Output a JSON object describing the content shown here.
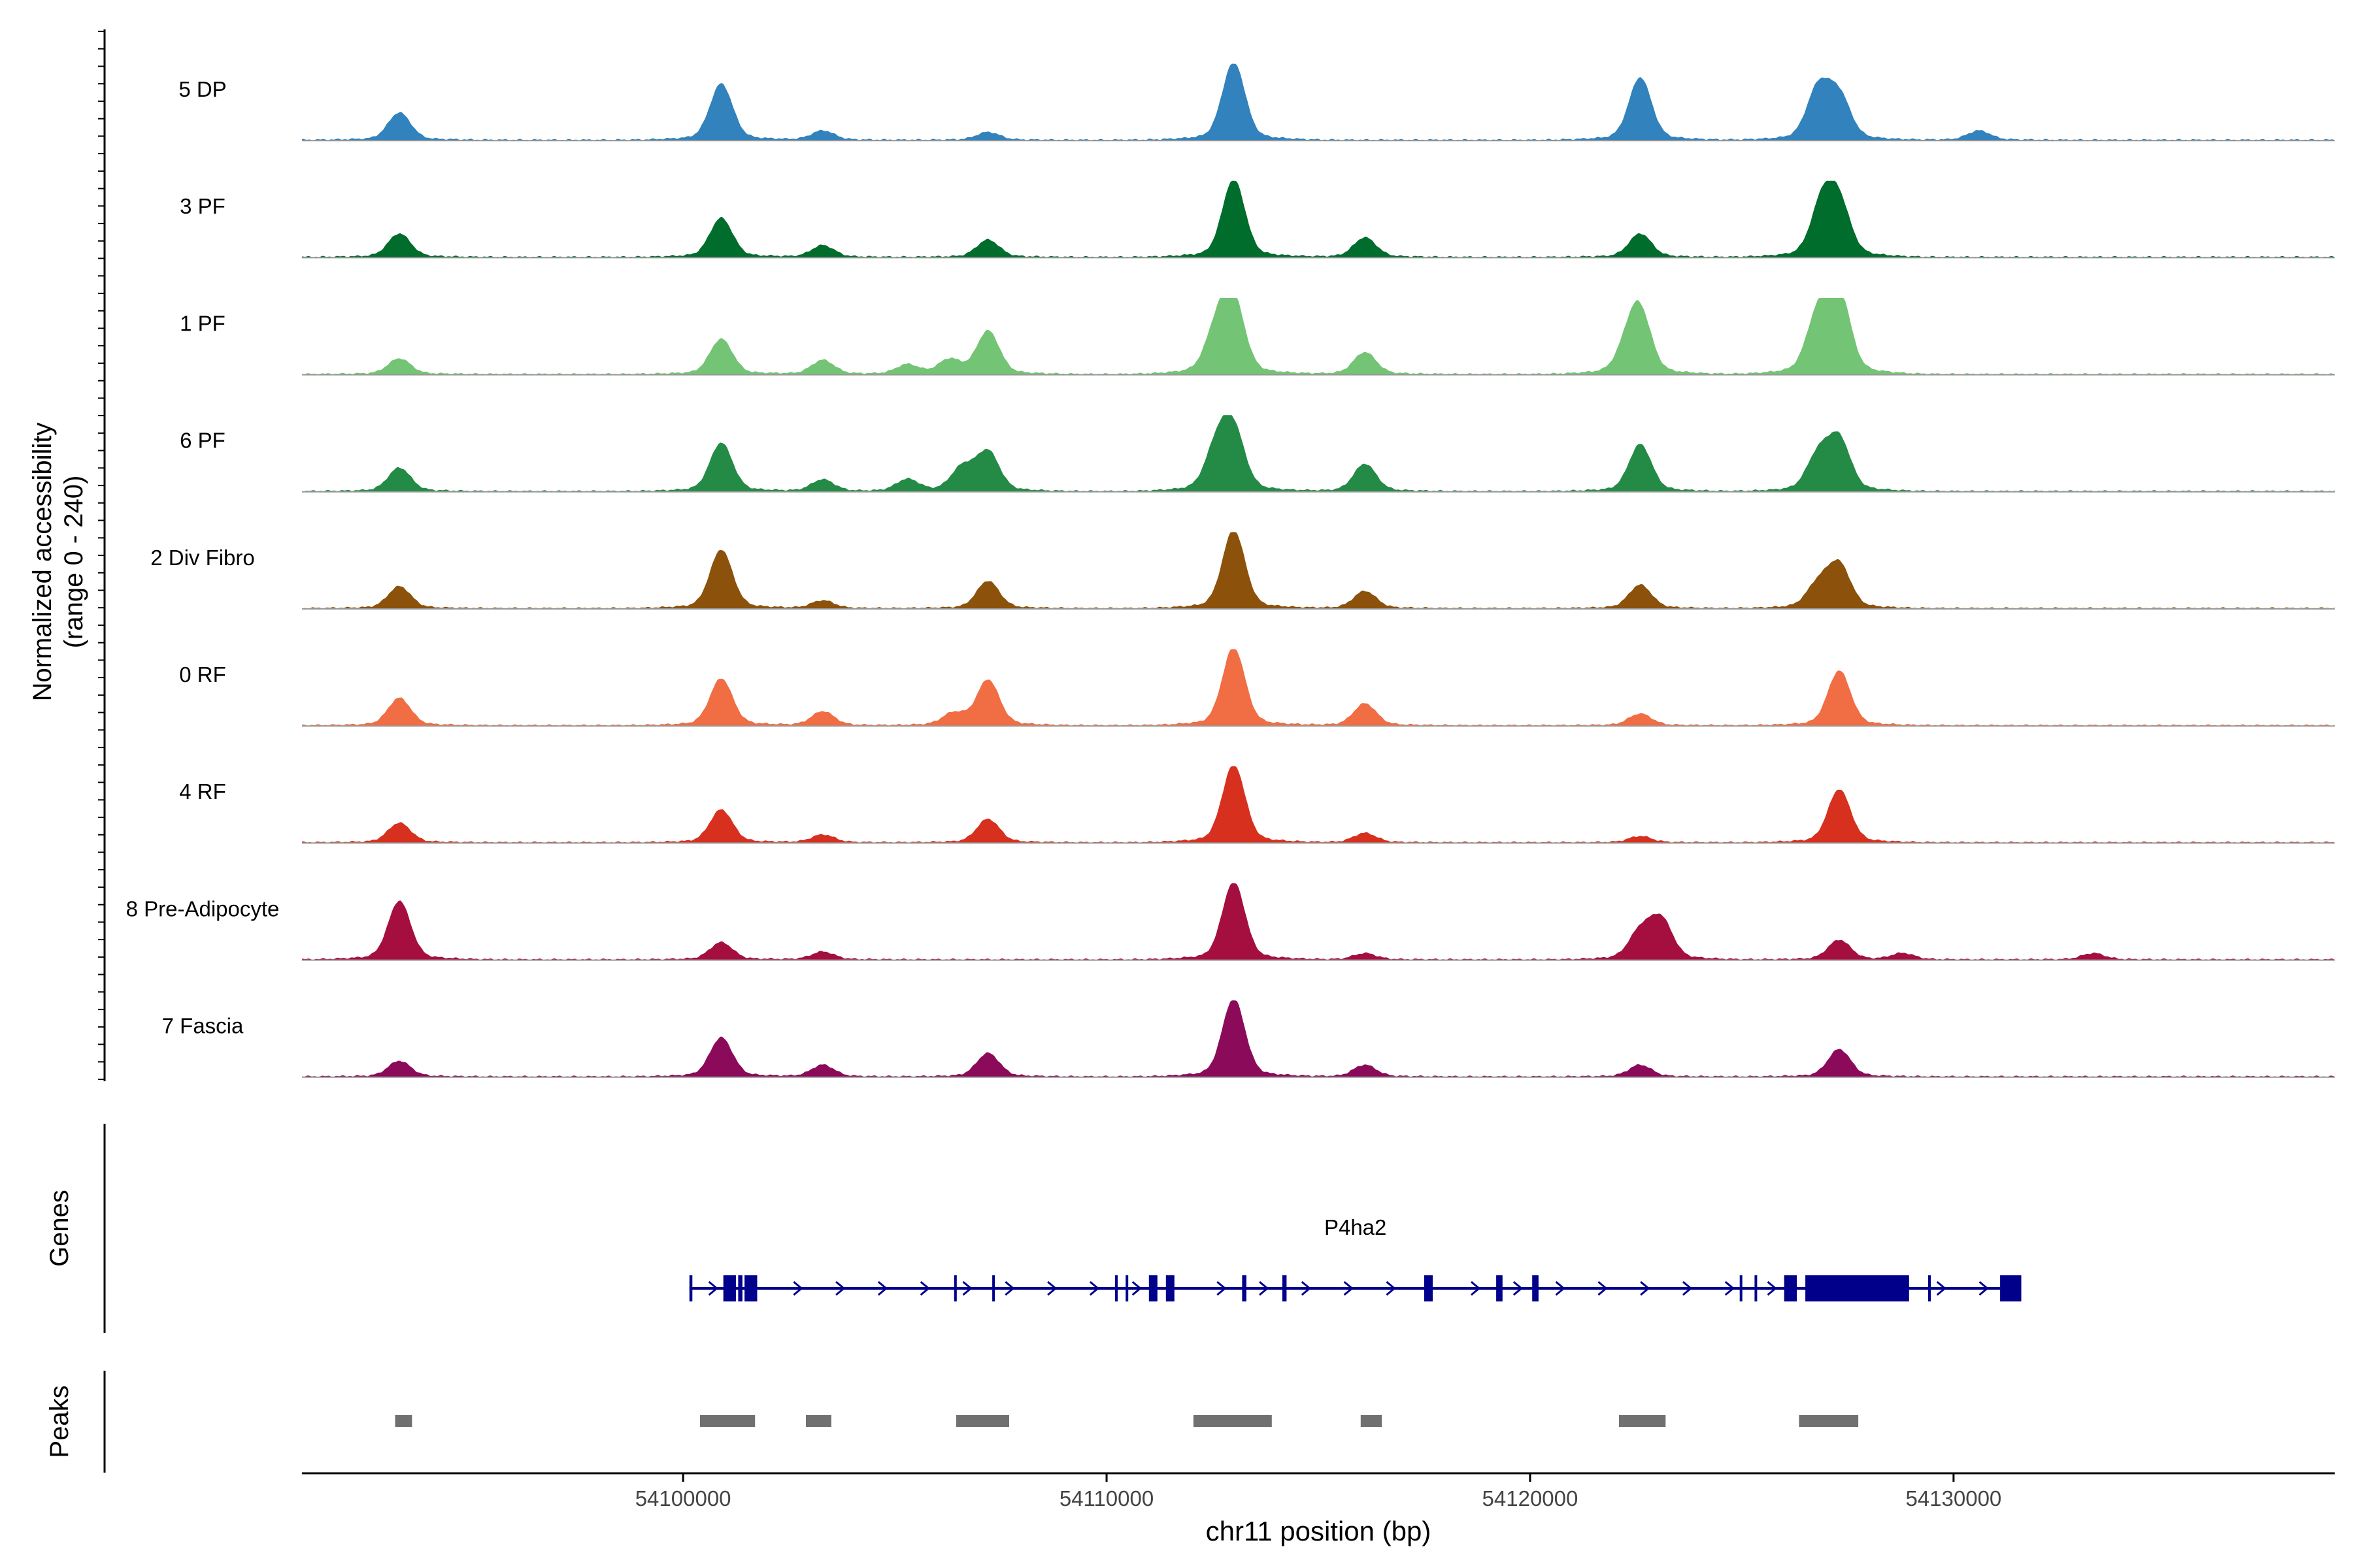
{
  "figure": {
    "y_axis_label_line1": "Normalized accessibility",
    "y_axis_label_line2": "(range 0 - 240)",
    "genes_label": "Genes",
    "peaks_label": "Peaks",
    "x_axis_label": "chr11 position (bp)"
  },
  "chart_data": {
    "type": "area",
    "title": "",
    "xlabel": "chr11 position (bp)",
    "ylabel": "Normalized accessibility (range 0 - 240)",
    "xlim": [
      54091000,
      54139000
    ],
    "ylim": [
      0,
      240
    ],
    "x_ticks": [
      54100000,
      54110000,
      54120000,
      54130000
    ],
    "x_tick_labels": [
      "54100000",
      "54110000",
      "54120000",
      "54130000"
    ],
    "tracks": [
      {
        "name": "5 DP",
        "color": "#3182BD",
        "peaks": [
          [
            54093300,
            0.35
          ],
          [
            54100900,
            0.72
          ],
          [
            54103300,
            0.12
          ],
          [
            54107200,
            0.1
          ],
          [
            54113000,
            1.0
          ],
          [
            54122600,
            0.8
          ],
          [
            54126800,
            0.65
          ],
          [
            54127300,
            0.55
          ],
          [
            54130600,
            0.12
          ]
        ]
      },
      {
        "name": "3 PF",
        "color": "#006D2C",
        "peaks": [
          [
            54093300,
            0.3
          ],
          [
            54100900,
            0.5
          ],
          [
            54103300,
            0.15
          ],
          [
            54107200,
            0.22
          ],
          [
            54113000,
            1.0
          ],
          [
            54116100,
            0.25
          ],
          [
            54122600,
            0.3
          ],
          [
            54126900,
            0.68
          ],
          [
            54127300,
            0.65
          ]
        ]
      },
      {
        "name": "1 PF",
        "color": "#74C476",
        "peaks": [
          [
            54093300,
            0.2
          ],
          [
            54100900,
            0.45
          ],
          [
            54103300,
            0.18
          ],
          [
            54105300,
            0.12
          ],
          [
            54106300,
            0.18
          ],
          [
            54107200,
            0.55
          ],
          [
            54112600,
            0.55
          ],
          [
            54113000,
            0.9
          ],
          [
            54116100,
            0.28
          ],
          [
            54122300,
            0.3
          ],
          [
            54122600,
            0.75
          ],
          [
            54126800,
            0.75
          ],
          [
            54127300,
            1.0
          ]
        ]
      },
      {
        "name": "6 PF",
        "color": "#238B45",
        "peaks": [
          [
            54093300,
            0.3
          ],
          [
            54100900,
            0.62
          ],
          [
            54103300,
            0.15
          ],
          [
            54105300,
            0.15
          ],
          [
            54106600,
            0.3
          ],
          [
            54107200,
            0.5
          ],
          [
            54112600,
            0.55
          ],
          [
            54113000,
            0.75
          ],
          [
            54116100,
            0.35
          ],
          [
            54122600,
            0.6
          ],
          [
            54126800,
            0.45
          ],
          [
            54127300,
            0.65
          ]
        ]
      },
      {
        "name": "2 Div Fibro",
        "color": "#8C510A",
        "peaks": [
          [
            54093300,
            0.28
          ],
          [
            54100900,
            0.75
          ],
          [
            54103300,
            0.1
          ],
          [
            54107200,
            0.35
          ],
          [
            54113000,
            1.0
          ],
          [
            54116100,
            0.22
          ],
          [
            54122600,
            0.3
          ],
          [
            54126800,
            0.3
          ],
          [
            54127300,
            0.55
          ]
        ]
      },
      {
        "name": "0 RF",
        "color": "#F16D43",
        "peaks": [
          [
            54093300,
            0.35
          ],
          [
            54100900,
            0.6
          ],
          [
            54103300,
            0.18
          ],
          [
            54106400,
            0.15
          ],
          [
            54107200,
            0.58
          ],
          [
            54113000,
            1.0
          ],
          [
            54116100,
            0.28
          ],
          [
            54122600,
            0.15
          ],
          [
            54127300,
            0.7
          ]
        ]
      },
      {
        "name": "4 RF",
        "color": "#D7301F",
        "peaks": [
          [
            54093300,
            0.25
          ],
          [
            54100900,
            0.42
          ],
          [
            54103300,
            0.1
          ],
          [
            54107200,
            0.3
          ],
          [
            54113000,
            1.0
          ],
          [
            54116100,
            0.12
          ],
          [
            54122600,
            0.08
          ],
          [
            54127300,
            0.68
          ]
        ]
      },
      {
        "name": "8 Pre-Adipocyte",
        "color": "#A50F3F",
        "peaks": [
          [
            54093300,
            0.75
          ],
          [
            54100900,
            0.22
          ],
          [
            54103300,
            0.1
          ],
          [
            54113000,
            1.0
          ],
          [
            54116100,
            0.08
          ],
          [
            54122600,
            0.35
          ],
          [
            54123100,
            0.5
          ],
          [
            54127300,
            0.25
          ],
          [
            54128800,
            0.08
          ],
          [
            54133300,
            0.08
          ]
        ]
      },
      {
        "name": "7 Fascia",
        "color": "#8B0A5A",
        "peaks": [
          [
            54093300,
            0.2
          ],
          [
            54100900,
            0.5
          ],
          [
            54103300,
            0.15
          ],
          [
            54107200,
            0.3
          ],
          [
            54113000,
            1.0
          ],
          [
            54116100,
            0.15
          ],
          [
            54122600,
            0.15
          ],
          [
            54127300,
            0.35
          ]
        ]
      }
    ],
    "gene": {
      "name": "P4ha2",
      "start": 54100150,
      "end": 54131600,
      "strand": "+",
      "color": "#00008B",
      "exons": [
        [
          54100150,
          54100220
        ],
        [
          54100950,
          54101250
        ],
        [
          54101300,
          54101400
        ],
        [
          54101450,
          54101750
        ],
        [
          54106400,
          54106450
        ],
        [
          54107300,
          54107350
        ],
        [
          54110200,
          54110250
        ],
        [
          54110450,
          54110500
        ],
        [
          54111000,
          54111200
        ],
        [
          54111400,
          54111600
        ],
        [
          54113200,
          54113300
        ],
        [
          54114150,
          54114250
        ],
        [
          54117500,
          54117700
        ],
        [
          54119200,
          54119350
        ],
        [
          54120050,
          54120200
        ],
        [
          54124950,
          54125000
        ],
        [
          54125300,
          54125350
        ],
        [
          54126000,
          54126300
        ],
        [
          54126500,
          54128950
        ],
        [
          54129400,
          54129450
        ],
        [
          54131100,
          54131600
        ]
      ]
    },
    "peaks_track": {
      "color": "#707070",
      "regions": [
        [
          54093200,
          54093600
        ],
        [
          54100400,
          54101700
        ],
        [
          54102900,
          54103500
        ],
        [
          54106450,
          54107700
        ],
        [
          54112050,
          54113900
        ],
        [
          54116000,
          54116500
        ],
        [
          54122100,
          54123200
        ],
        [
          54126350,
          54127750
        ]
      ]
    }
  }
}
